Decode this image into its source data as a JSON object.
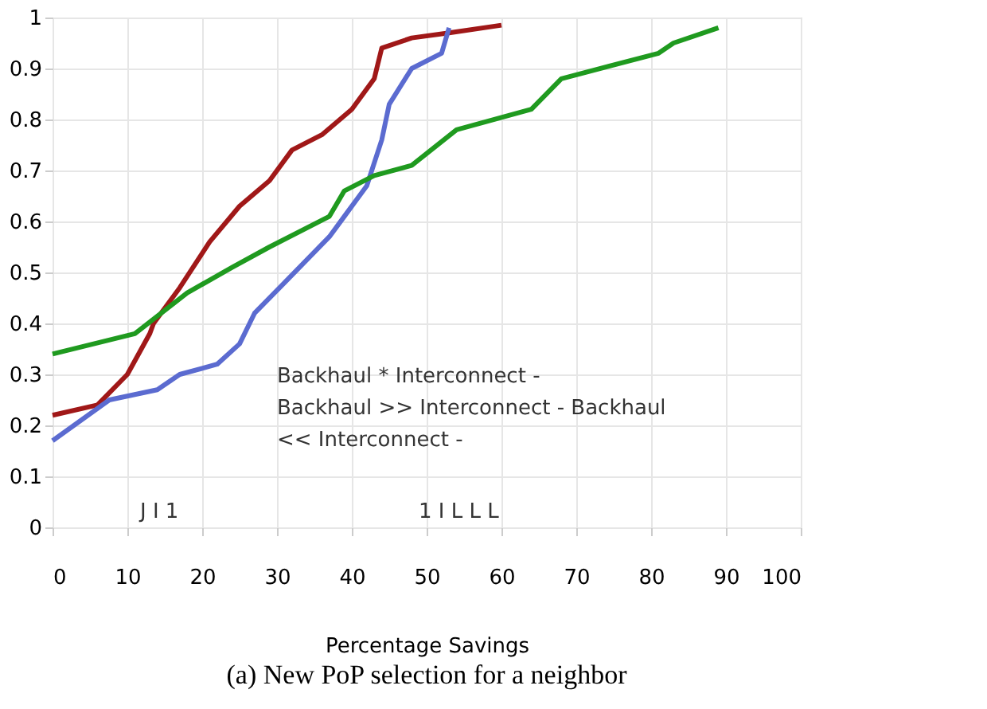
{
  "chart_data": {
    "type": "line",
    "title": "(a) New PoP selection  for a neighbor",
    "xlabel": "Percentage Savings",
    "xlim": [
      0,
      100
    ],
    "xticks": [
      0,
      10,
      20,
      30,
      40,
      50,
      60,
      70,
      80,
      90,
      100
    ],
    "ylim": [
      0,
      1
    ],
    "yticks": [
      0,
      0.1,
      0.2,
      0.3,
      0.4,
      0.5,
      0.6,
      0.7,
      0.8,
      0.9,
      1
    ],
    "grid": true,
    "legend": false,
    "marker": "none",
    "line_style": "solid",
    "annotations": [
      "Backhaul * Interconnect -",
      "Backhaul >> Interconnect - Backhaul",
      "<< Interconnect -",
      "J I 1",
      "1 I L L L"
    ],
    "series": [
      {
        "color": "#a01818",
        "x": [
          0,
          6,
          10,
          13,
          13.5,
          17,
          21,
          25,
          29,
          32,
          36,
          40,
          43,
          44,
          48,
          53,
          60
        ],
        "values": [
          0.22,
          0.24,
          0.3,
          0.38,
          0.4,
          0.47,
          0.56,
          0.63,
          0.68,
          0.74,
          0.77,
          0.82,
          0.88,
          0.94,
          0.96,
          0.97,
          0.985
        ]
      },
      {
        "color": "#5b6bd0",
        "x": [
          0,
          7.6,
          14,
          17,
          22,
          25,
          27,
          31,
          37,
          39,
          42,
          44,
          45,
          48,
          52,
          53
        ],
        "values": [
          0.17,
          0.25,
          0.27,
          0.3,
          0.32,
          0.36,
          0.42,
          0.48,
          0.57,
          0.61,
          0.67,
          0.76,
          0.83,
          0.9,
          0.93,
          0.98
        ]
      },
      {
        "color": "#1f9a1f",
        "x": [
          0,
          11,
          18,
          24,
          29,
          37,
          39,
          43,
          48,
          54,
          64,
          68,
          81,
          83,
          89
        ],
        "values": [
          0.34,
          0.38,
          0.46,
          0.51,
          0.55,
          0.61,
          0.66,
          0.69,
          0.71,
          0.78,
          0.82,
          0.88,
          0.93,
          0.95,
          0.98
        ]
      }
    ]
  }
}
